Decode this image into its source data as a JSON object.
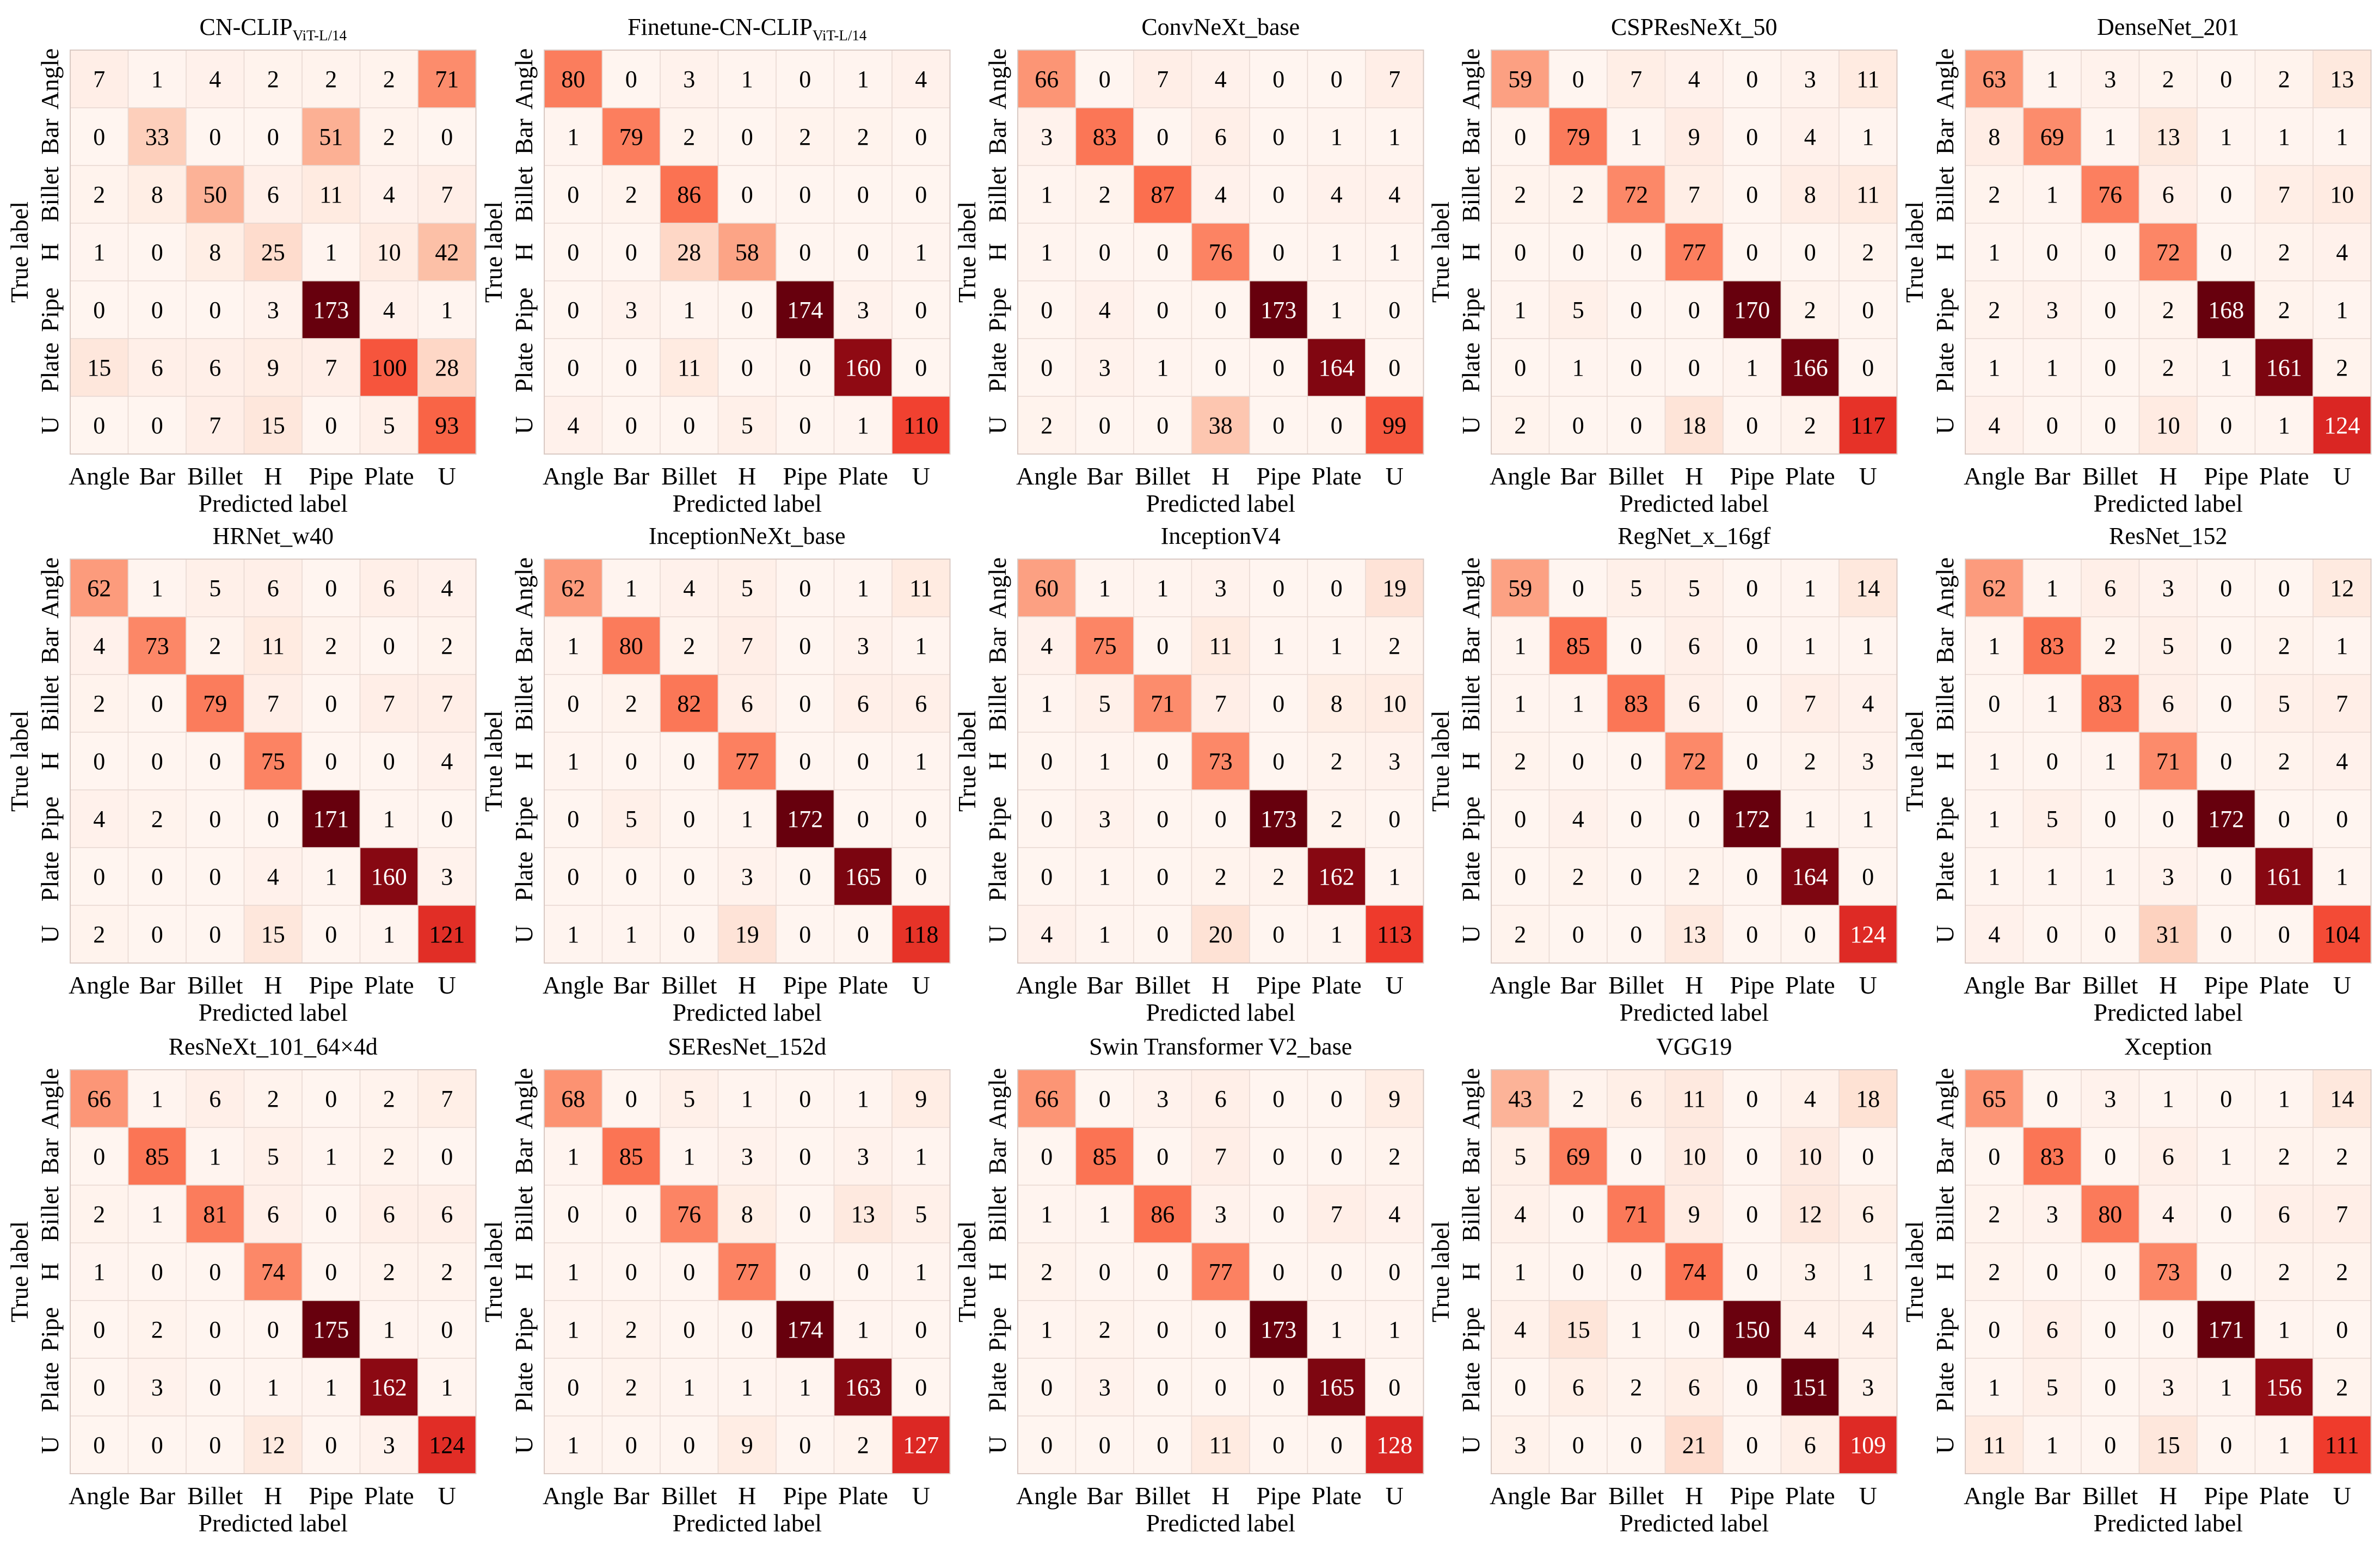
{
  "axis_labels": {
    "x": "Predicted label",
    "y": "True label"
  },
  "class_labels": [
    "Angle",
    "Bar",
    "Billet",
    "H",
    "Pipe",
    "Plate",
    "U"
  ],
  "chart_data": [
    {
      "type": "heatmap",
      "title": "CN-CLIP",
      "title_sub": "ViT-L/14",
      "xlabel": "Predicted label",
      "ylabel": "True label",
      "categories": [
        "Angle",
        "Bar",
        "Billet",
        "H",
        "Pipe",
        "Plate",
        "U"
      ],
      "values": [
        [
          7,
          1,
          4,
          2,
          2,
          2,
          71
        ],
        [
          0,
          33,
          0,
          0,
          51,
          2,
          0
        ],
        [
          2,
          8,
          50,
          6,
          11,
          4,
          7
        ],
        [
          1,
          0,
          8,
          25,
          1,
          10,
          42
        ],
        [
          0,
          0,
          0,
          3,
          173,
          4,
          1
        ],
        [
          15,
          6,
          6,
          9,
          7,
          100,
          28
        ],
        [
          0,
          0,
          7,
          15,
          0,
          5,
          93
        ]
      ]
    },
    {
      "type": "heatmap",
      "title": "Finetune-CN-CLIP",
      "title_sub": "ViT-L/14",
      "xlabel": "Predicted label",
      "ylabel": "True label",
      "categories": [
        "Angle",
        "Bar",
        "Billet",
        "H",
        "Pipe",
        "Plate",
        "U"
      ],
      "values": [
        [
          80,
          0,
          3,
          1,
          0,
          1,
          4
        ],
        [
          1,
          79,
          2,
          0,
          2,
          2,
          0
        ],
        [
          0,
          2,
          86,
          0,
          0,
          0,
          0
        ],
        [
          0,
          0,
          28,
          58,
          0,
          0,
          1
        ],
        [
          0,
          3,
          1,
          0,
          174,
          3,
          0
        ],
        [
          0,
          0,
          11,
          0,
          0,
          160,
          0
        ],
        [
          4,
          0,
          0,
          5,
          0,
          1,
          110
        ]
      ]
    },
    {
      "type": "heatmap",
      "title": "ConvNeXt_base",
      "title_sub": "",
      "xlabel": "Predicted label",
      "ylabel": "True label",
      "categories": [
        "Angle",
        "Bar",
        "Billet",
        "H",
        "Pipe",
        "Plate",
        "U"
      ],
      "values": [
        [
          66,
          0,
          7,
          4,
          0,
          0,
          7
        ],
        [
          3,
          83,
          0,
          6,
          0,
          1,
          1
        ],
        [
          1,
          2,
          87,
          4,
          0,
          4,
          4
        ],
        [
          1,
          0,
          0,
          76,
          0,
          1,
          1
        ],
        [
          0,
          4,
          0,
          0,
          173,
          1,
          0
        ],
        [
          0,
          3,
          1,
          0,
          0,
          164,
          0
        ],
        [
          2,
          0,
          0,
          38,
          0,
          0,
          99
        ]
      ]
    },
    {
      "type": "heatmap",
      "title": "CSPResNeXt_50",
      "title_sub": "",
      "xlabel": "Predicted label",
      "ylabel": "True label",
      "categories": [
        "Angle",
        "Bar",
        "Billet",
        "H",
        "Pipe",
        "Plate",
        "U"
      ],
      "values": [
        [
          59,
          0,
          7,
          4,
          0,
          3,
          11
        ],
        [
          0,
          79,
          1,
          9,
          0,
          4,
          1
        ],
        [
          2,
          2,
          72,
          7,
          0,
          8,
          11
        ],
        [
          0,
          0,
          0,
          77,
          0,
          0,
          2
        ],
        [
          1,
          5,
          0,
          0,
          170,
          2,
          0
        ],
        [
          0,
          1,
          0,
          0,
          1,
          166,
          0
        ],
        [
          2,
          0,
          0,
          18,
          0,
          2,
          117
        ]
      ]
    },
    {
      "type": "heatmap",
      "title": "DenseNet_201",
      "title_sub": "",
      "xlabel": "Predicted label",
      "ylabel": "True label",
      "categories": [
        "Angle",
        "Bar",
        "Billet",
        "H",
        "Pipe",
        "Plate",
        "U"
      ],
      "values": [
        [
          63,
          1,
          3,
          2,
          0,
          2,
          13
        ],
        [
          8,
          69,
          1,
          13,
          1,
          1,
          1
        ],
        [
          2,
          1,
          76,
          6,
          0,
          7,
          10
        ],
        [
          1,
          0,
          0,
          72,
          0,
          2,
          4
        ],
        [
          2,
          3,
          0,
          2,
          168,
          2,
          1
        ],
        [
          1,
          1,
          0,
          2,
          1,
          161,
          2
        ],
        [
          4,
          0,
          0,
          10,
          0,
          1,
          124
        ]
      ]
    },
    {
      "type": "heatmap",
      "title": "HRNet_w40",
      "title_sub": "",
      "xlabel": "Predicted label",
      "ylabel": "True label",
      "categories": [
        "Angle",
        "Bar",
        "Billet",
        "H",
        "Pipe",
        "Plate",
        "U"
      ],
      "values": [
        [
          62,
          1,
          5,
          6,
          0,
          6,
          4
        ],
        [
          4,
          73,
          2,
          11,
          2,
          0,
          2
        ],
        [
          2,
          0,
          79,
          7,
          0,
          7,
          7
        ],
        [
          0,
          0,
          0,
          75,
          0,
          0,
          4
        ],
        [
          4,
          2,
          0,
          0,
          171,
          1,
          0
        ],
        [
          0,
          0,
          0,
          4,
          1,
          160,
          3
        ],
        [
          2,
          0,
          0,
          15,
          0,
          1,
          121
        ]
      ]
    },
    {
      "type": "heatmap",
      "title": "InceptionNeXt_base",
      "title_sub": "",
      "xlabel": "Predicted label",
      "ylabel": "True label",
      "categories": [
        "Angle",
        "Bar",
        "Billet",
        "H",
        "Pipe",
        "Plate",
        "U"
      ],
      "values": [
        [
          62,
          1,
          4,
          5,
          0,
          1,
          11
        ],
        [
          1,
          80,
          2,
          7,
          0,
          3,
          1
        ],
        [
          0,
          2,
          82,
          6,
          0,
          6,
          6
        ],
        [
          1,
          0,
          0,
          77,
          0,
          0,
          1
        ],
        [
          0,
          5,
          0,
          1,
          172,
          0,
          0
        ],
        [
          0,
          0,
          0,
          3,
          0,
          165,
          0
        ],
        [
          1,
          1,
          0,
          19,
          0,
          0,
          118
        ]
      ]
    },
    {
      "type": "heatmap",
      "title": "InceptionV4",
      "title_sub": "",
      "xlabel": "Predicted label",
      "ylabel": "True label",
      "categories": [
        "Angle",
        "Bar",
        "Billet",
        "H",
        "Pipe",
        "Plate",
        "U"
      ],
      "values": [
        [
          60,
          1,
          1,
          3,
          0,
          0,
          19
        ],
        [
          4,
          75,
          0,
          11,
          1,
          1,
          2
        ],
        [
          1,
          5,
          71,
          7,
          0,
          8,
          10
        ],
        [
          0,
          1,
          0,
          73,
          0,
          2,
          3
        ],
        [
          0,
          3,
          0,
          0,
          173,
          2,
          0
        ],
        [
          0,
          1,
          0,
          2,
          2,
          162,
          1
        ],
        [
          4,
          1,
          0,
          20,
          0,
          1,
          113
        ]
      ]
    },
    {
      "type": "heatmap",
      "title": "RegNet_x_16gf",
      "title_sub": "",
      "xlabel": "Predicted label",
      "ylabel": "True label",
      "categories": [
        "Angle",
        "Bar",
        "Billet",
        "H",
        "Pipe",
        "Plate",
        "U"
      ],
      "values": [
        [
          59,
          0,
          5,
          5,
          0,
          1,
          14
        ],
        [
          1,
          85,
          0,
          6,
          0,
          1,
          1
        ],
        [
          1,
          1,
          83,
          6,
          0,
          7,
          4
        ],
        [
          2,
          0,
          0,
          72,
          0,
          2,
          3
        ],
        [
          0,
          4,
          0,
          0,
          172,
          1,
          1
        ],
        [
          0,
          2,
          0,
          2,
          0,
          164,
          0
        ],
        [
          2,
          0,
          0,
          13,
          0,
          0,
          124
        ]
      ]
    },
    {
      "type": "heatmap",
      "title": "ResNet_152",
      "title_sub": "",
      "xlabel": "Predicted label",
      "ylabel": "True label",
      "categories": [
        "Angle",
        "Bar",
        "Billet",
        "H",
        "Pipe",
        "Plate",
        "U"
      ],
      "values": [
        [
          62,
          1,
          6,
          3,
          0,
          0,
          12
        ],
        [
          1,
          83,
          2,
          5,
          0,
          2,
          1
        ],
        [
          0,
          1,
          83,
          6,
          0,
          5,
          7
        ],
        [
          1,
          0,
          1,
          71,
          0,
          2,
          4
        ],
        [
          1,
          5,
          0,
          0,
          172,
          0,
          0
        ],
        [
          1,
          1,
          1,
          3,
          0,
          161,
          1
        ],
        [
          4,
          0,
          0,
          31,
          0,
          0,
          104
        ]
      ]
    },
    {
      "type": "heatmap",
      "title": "ResNeXt_101_64×4d",
      "title_sub": "",
      "xlabel": "Predicted label",
      "ylabel": "True label",
      "categories": [
        "Angle",
        "Bar",
        "Billet",
        "H",
        "Pipe",
        "Plate",
        "U"
      ],
      "values": [
        [
          66,
          1,
          6,
          2,
          0,
          2,
          7
        ],
        [
          0,
          85,
          1,
          5,
          1,
          2,
          0
        ],
        [
          2,
          1,
          81,
          6,
          0,
          6,
          6
        ],
        [
          1,
          0,
          0,
          74,
          0,
          2,
          2
        ],
        [
          0,
          2,
          0,
          0,
          175,
          1,
          0
        ],
        [
          0,
          3,
          0,
          1,
          1,
          162,
          1
        ],
        [
          0,
          0,
          0,
          12,
          0,
          3,
          124
        ]
      ]
    },
    {
      "type": "heatmap",
      "title": "SEResNet_152d",
      "title_sub": "",
      "xlabel": "Predicted label",
      "ylabel": "True label",
      "categories": [
        "Angle",
        "Bar",
        "Billet",
        "H",
        "Pipe",
        "Plate",
        "U"
      ],
      "values": [
        [
          68,
          0,
          5,
          1,
          0,
          1,
          9
        ],
        [
          1,
          85,
          1,
          3,
          0,
          3,
          1
        ],
        [
          0,
          0,
          76,
          8,
          0,
          13,
          5
        ],
        [
          1,
          0,
          0,
          77,
          0,
          0,
          1
        ],
        [
          1,
          2,
          0,
          0,
          174,
          1,
          0
        ],
        [
          0,
          2,
          1,
          1,
          1,
          163,
          0
        ],
        [
          1,
          0,
          0,
          9,
          0,
          2,
          127
        ]
      ]
    },
    {
      "type": "heatmap",
      "title": "Swin Transformer V2_base",
      "title_sub": "",
      "xlabel": "Predicted label",
      "ylabel": "True label",
      "categories": [
        "Angle",
        "Bar",
        "Billet",
        "H",
        "Pipe",
        "Plate",
        "U"
      ],
      "values": [
        [
          66,
          0,
          3,
          6,
          0,
          0,
          9
        ],
        [
          0,
          85,
          0,
          7,
          0,
          0,
          2
        ],
        [
          1,
          1,
          86,
          3,
          0,
          7,
          4
        ],
        [
          2,
          0,
          0,
          77,
          0,
          0,
          0
        ],
        [
          1,
          2,
          0,
          0,
          173,
          1,
          1
        ],
        [
          0,
          3,
          0,
          0,
          0,
          165,
          0
        ],
        [
          0,
          0,
          0,
          11,
          0,
          0,
          128
        ]
      ]
    },
    {
      "type": "heatmap",
      "title": "VGG19",
      "title_sub": "",
      "xlabel": "Predicted label",
      "ylabel": "True label",
      "categories": [
        "Angle",
        "Bar",
        "Billet",
        "H",
        "Pipe",
        "Plate",
        "U"
      ],
      "values": [
        [
          43,
          2,
          6,
          11,
          0,
          4,
          18
        ],
        [
          5,
          69,
          0,
          10,
          0,
          10,
          0
        ],
        [
          4,
          0,
          71,
          9,
          0,
          12,
          6
        ],
        [
          1,
          0,
          0,
          74,
          0,
          3,
          1
        ],
        [
          4,
          15,
          1,
          0,
          150,
          4,
          4
        ],
        [
          0,
          6,
          2,
          6,
          0,
          151,
          3
        ],
        [
          3,
          0,
          0,
          21,
          0,
          6,
          109
        ]
      ]
    },
    {
      "type": "heatmap",
      "title": "Xception",
      "title_sub": "",
      "xlabel": "Predicted label",
      "ylabel": "True label",
      "categories": [
        "Angle",
        "Bar",
        "Billet",
        "H",
        "Pipe",
        "Plate",
        "U"
      ],
      "values": [
        [
          65,
          0,
          3,
          1,
          0,
          1,
          14
        ],
        [
          0,
          83,
          0,
          6,
          1,
          2,
          2
        ],
        [
          2,
          3,
          80,
          4,
          0,
          6,
          7
        ],
        [
          2,
          0,
          0,
          73,
          0,
          2,
          2
        ],
        [
          0,
          6,
          0,
          0,
          171,
          1,
          0
        ],
        [
          1,
          5,
          0,
          3,
          1,
          156,
          2
        ],
        [
          11,
          1,
          0,
          15,
          0,
          1,
          111
        ]
      ]
    }
  ]
}
